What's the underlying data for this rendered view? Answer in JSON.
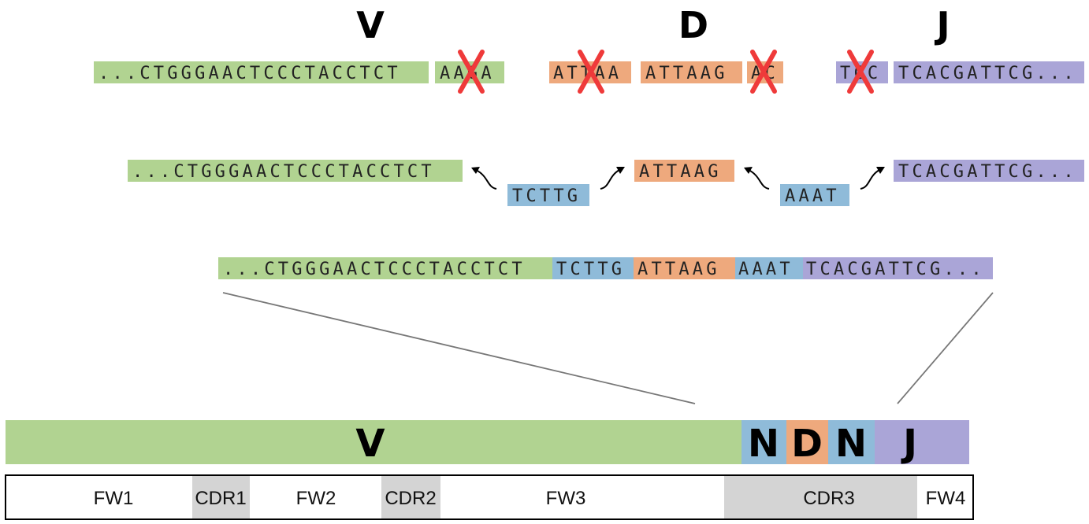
{
  "colors": {
    "v": "#b1d391",
    "d": "#eea97d",
    "j": "#aaa5d7",
    "n": "#8fbbd9",
    "cdr": "#d4d4d4",
    "cross": "#ef3a3a"
  },
  "headers": {
    "v": "V",
    "d": "D",
    "j": "J"
  },
  "row1": {
    "v_main": "...CTGGGAACTCCCTACCTCT",
    "v_trim": "AAGA",
    "d_trim_left": "ATTAA",
    "d_main": "ATTAAG",
    "d_trim_right": "AC",
    "j_trim": "TCC",
    "j_main": "TCACGATTCG..."
  },
  "row2": {
    "v": "...CTGGGAACTCCCTACCTCT",
    "n1": "TCTTG",
    "d": "ATTAAG",
    "n2": "AAAT",
    "j": "TCACGATTCG..."
  },
  "row3": {
    "v": "...CTGGGAACTCCCTACCTCT",
    "n1": "TCTTG",
    "d": "ATTAAG",
    "n2": "AAAT",
    "j": "TCACGATTCG..."
  },
  "bar": {
    "v": "V",
    "n1": "N",
    "d": "D",
    "n2": "N",
    "j": "J"
  },
  "regions": {
    "fw1": "FW1",
    "cdr1": "CDR1",
    "fw2": "FW2",
    "cdr2": "CDR2",
    "fw3": "FW3",
    "cdr3": "CDR3",
    "fw4": "FW4"
  }
}
